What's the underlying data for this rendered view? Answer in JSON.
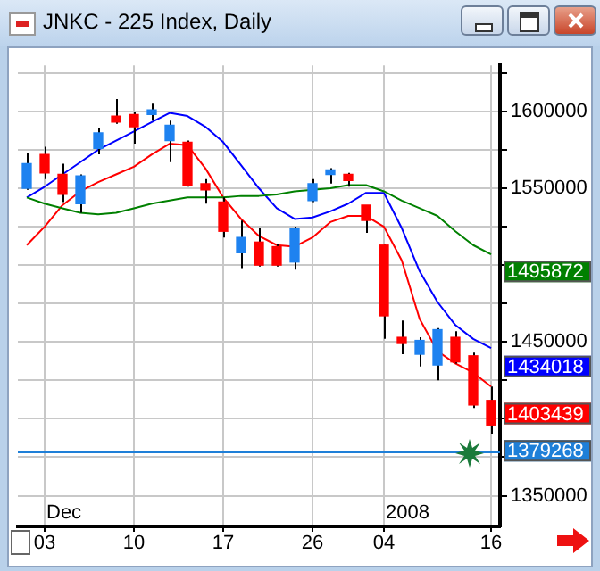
{
  "chart_data": {
    "type": "candlestick",
    "title": "JNKC - 225 Index, Daily",
    "categories": [
      null,
      "03",
      null,
      null,
      null,
      null,
      "10",
      null,
      null,
      null,
      null,
      "17",
      null,
      null,
      null,
      null,
      "26",
      null,
      null,
      null,
      "04",
      null,
      null,
      null,
      null,
      null,
      "16"
    ],
    "ohlc": [
      [
        1550000,
        1573000,
        1549000,
        1566000
      ],
      [
        1572000,
        1577000,
        1556000,
        1560000
      ],
      [
        1559000,
        1566000,
        1541000,
        1546000
      ],
      [
        1540000,
        1559000,
        1534000,
        1558000
      ],
      [
        1576000,
        1589000,
        1572000,
        1586000
      ],
      [
        1597000,
        1608000,
        1592000,
        1593000
      ],
      [
        1598000,
        1600000,
        1579000,
        1590000
      ],
      [
        1598000,
        1605000,
        1594000,
        1601000
      ],
      [
        1581000,
        1594000,
        1567000,
        1591000
      ],
      [
        1580000,
        1581000,
        1551000,
        1552000
      ],
      [
        1553000,
        1556000,
        1540000,
        1549000
      ],
      [
        1541000,
        1544000,
        1518000,
        1522000
      ],
      [
        1508000,
        1529000,
        1498000,
        1518000
      ],
      [
        1515000,
        1524000,
        1499000,
        1500000
      ],
      [
        1512000,
        1514000,
        1499000,
        1500000
      ],
      [
        1502000,
        1525000,
        1497000,
        1524000
      ],
      [
        1542000,
        1556000,
        1541000,
        1553000
      ],
      [
        1559000,
        1563000,
        1553000,
        1562000
      ],
      [
        1559000,
        1560000,
        1551000,
        1555000
      ],
      [
        1539000,
        1539000,
        1521000,
        1529000
      ],
      [
        1513000,
        1514000,
        1452000,
        1467000
      ],
      [
        1453000,
        1464000,
        1442000,
        1449000
      ],
      [
        1442000,
        1453000,
        1434000,
        1451000
      ],
      [
        1435000,
        1459000,
        1425000,
        1458000
      ],
      [
        1453000,
        1457000,
        1436000,
        1437000
      ],
      [
        1441000,
        1443000,
        1407000,
        1409000
      ],
      [
        1412000,
        1421000,
        1390000,
        1396000
      ]
    ],
    "colors": [
      "#1e82f0",
      "#ff0000",
      "#ff0000",
      "#1e82f0",
      "#1e82f0",
      "#ff0000",
      "#ff0000",
      "#1e82f0",
      "#1e82f0",
      "#ff0000",
      "#ff0000",
      "#ff0000",
      "#1e82f0",
      "#ff0000",
      "#ff0000",
      "#1e82f0",
      "#1e82f0",
      "#1e82f0",
      "#ff0000",
      "#ff0000",
      "#ff0000",
      "#ff0000",
      "#1e82f0",
      "#1e82f0",
      "#ff0000",
      "#ff0000",
      "#ff0000"
    ],
    "series": [
      {
        "type": "line",
        "color": "#008000",
        "values": [
          1544000,
          1540000,
          1537000,
          1534000,
          1533000,
          1534000,
          1537000,
          1540000,
          1542000,
          1544000,
          1544000,
          1544000,
          1545000,
          1545000,
          1546000,
          1548000,
          1549000,
          1550000,
          1552000,
          1552000,
          1548000,
          1542000,
          1537000,
          1532000,
          1522000,
          1513000,
          1507000
        ]
      },
      {
        "type": "line",
        "color": "#0000ff",
        "values": [
          1544000,
          1551000,
          1559000,
          1567000,
          1575000,
          1581000,
          1587000,
          1593000,
          1599000,
          1597000,
          1590000,
          1580000,
          1565000,
          1550000,
          1537000,
          1530000,
          1531000,
          1535000,
          1540000,
          1547000,
          1547000,
          1524000,
          1496000,
          1476000,
          1461000,
          1452000,
          1446000
        ]
      },
      {
        "type": "line",
        "color": "#ff0000",
        "values": [
          1513000,
          1525000,
          1539000,
          1548000,
          1554000,
          1559000,
          1564000,
          1572000,
          1579000,
          1578000,
          1563000,
          1544000,
          1530000,
          1519000,
          1513000,
          1512000,
          1518000,
          1528000,
          1532000,
          1532000,
          1525000,
          1503000,
          1465000,
          1444000,
          1436000,
          1430000,
          1421000
        ]
      }
    ],
    "ylim": [
      1330000,
      1630000
    ],
    "yticks": [
      1350000,
      {
        "value": 1375000,
        "label": null
      },
      {
        "value": 1400000,
        "label": null
      },
      {
        "value": 1425000,
        "label": null
      },
      1450000,
      {
        "value": 1475000,
        "label": null
      },
      {
        "value": 1500000,
        "label": null
      },
      {
        "value": 1525000,
        "label": null
      },
      1550000,
      {
        "value": 1575000,
        "label": null
      },
      1600000,
      {
        "value": 1625000,
        "label": null
      }
    ],
    "ref_lines": [
      {
        "axis": "y",
        "value": 1379268,
        "label": "1379268",
        "color": "#1e7fd8"
      }
    ],
    "annotations": [
      "1495872",
      "1434018",
      "1403439",
      "Dec",
      "2008"
    ],
    "grid": true,
    "legend": false
  }
}
